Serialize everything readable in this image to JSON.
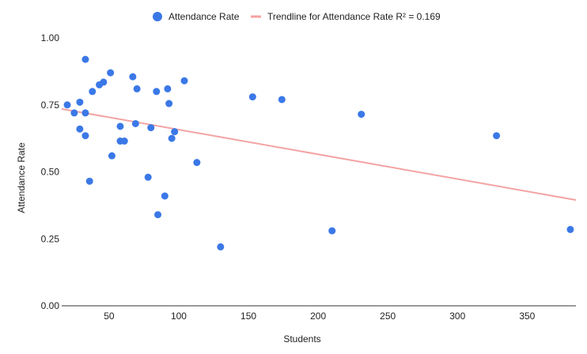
{
  "chart_data": {
    "type": "scatter",
    "title": "",
    "xlabel": "Students",
    "ylabel": "Attendance Rate",
    "xlim": [
      16,
      385
    ],
    "ylim": [
      0,
      1
    ],
    "x_ticks": [
      50,
      100,
      150,
      200,
      250,
      300,
      350
    ],
    "y_ticks": [
      "0.00",
      "0.25",
      "0.50",
      "0.75",
      "1.00"
    ],
    "grid": false,
    "legend_position": "top",
    "series": [
      {
        "name": "Attendance Rate",
        "color": "#3b78e7",
        "points": [
          {
            "x": 20,
            "y": 0.75
          },
          {
            "x": 25,
            "y": 0.72
          },
          {
            "x": 29,
            "y": 0.76
          },
          {
            "x": 29,
            "y": 0.66
          },
          {
            "x": 33,
            "y": 0.92
          },
          {
            "x": 33,
            "y": 0.72
          },
          {
            "x": 33,
            "y": 0.635
          },
          {
            "x": 36,
            "y": 0.465
          },
          {
            "x": 38,
            "y": 0.8
          },
          {
            "x": 43,
            "y": 0.825
          },
          {
            "x": 46,
            "y": 0.835
          },
          {
            "x": 51,
            "y": 0.87
          },
          {
            "x": 52,
            "y": 0.56
          },
          {
            "x": 58,
            "y": 0.67
          },
          {
            "x": 58,
            "y": 0.615
          },
          {
            "x": 61,
            "y": 0.615
          },
          {
            "x": 67,
            "y": 0.855
          },
          {
            "x": 69,
            "y": 0.68
          },
          {
            "x": 70,
            "y": 0.81
          },
          {
            "x": 78,
            "y": 0.48
          },
          {
            "x": 80,
            "y": 0.665
          },
          {
            "x": 84,
            "y": 0.8
          },
          {
            "x": 85,
            "y": 0.34
          },
          {
            "x": 90,
            "y": 0.41
          },
          {
            "x": 92,
            "y": 0.81
          },
          {
            "x": 93,
            "y": 0.755
          },
          {
            "x": 95,
            "y": 0.625
          },
          {
            "x": 97,
            "y": 0.65
          },
          {
            "x": 104,
            "y": 0.84
          },
          {
            "x": 113,
            "y": 0.535
          },
          {
            "x": 130,
            "y": 0.22
          },
          {
            "x": 153,
            "y": 0.78
          },
          {
            "x": 174,
            "y": 0.77
          },
          {
            "x": 210,
            "y": 0.28
          },
          {
            "x": 231,
            "y": 0.715
          },
          {
            "x": 328,
            "y": 0.635
          },
          {
            "x": 381,
            "y": 0.285
          }
        ]
      }
    ],
    "trendline": {
      "name": "Trendline for Attendance Rate R² = 0.169",
      "color": "#f4a3a3",
      "x": [
        16,
        385
      ],
      "y": [
        0.735,
        0.395
      ]
    }
  }
}
